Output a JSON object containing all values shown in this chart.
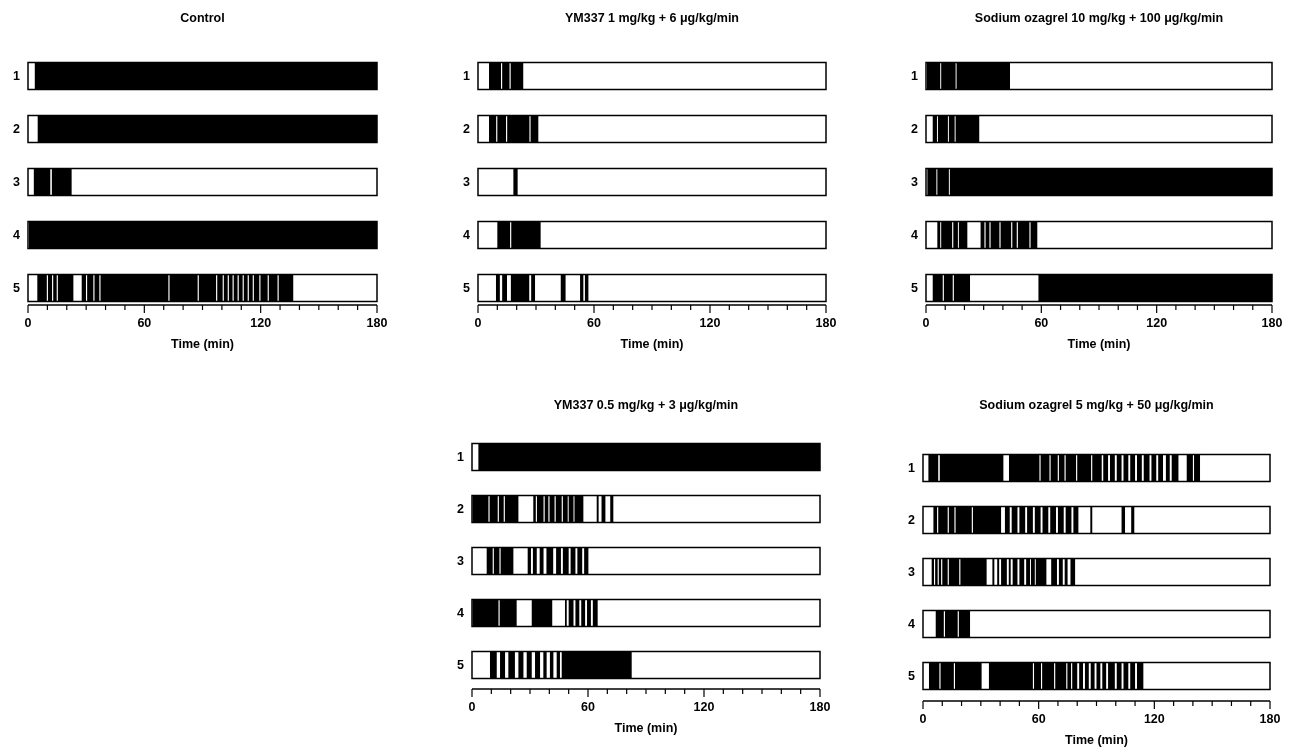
{
  "chart_data": [
    {
      "type": "bar",
      "orientation": "horizontal",
      "title": "Control",
      "xlabel": "Time (min)",
      "categories": [
        "1",
        "2",
        "3",
        "4",
        "5"
      ],
      "xlim": [
        0,
        180
      ],
      "xticks": [
        0,
        {
          "value": 10,
          "label": null
        },
        {
          "value": 20,
          "label": null
        },
        {
          "value": 30,
          "label": null
        },
        {
          "value": 40,
          "label": null
        },
        {
          "value": 50,
          "label": null
        },
        60,
        {
          "value": 70,
          "label": null
        },
        {
          "value": 80,
          "label": null
        },
        {
          "value": 90,
          "label": null
        },
        {
          "value": 100,
          "label": null
        },
        {
          "value": 110,
          "label": null
        },
        120,
        {
          "value": 130,
          "label": null
        },
        {
          "value": 140,
          "label": null
        },
        {
          "value": 150,
          "label": null
        },
        {
          "value": 160,
          "label": null
        },
        {
          "value": 170,
          "label": null
        },
        180
      ],
      "series": [
        {
          "color": "#000000",
          "base": [
            3.5,
            5,
            3,
            0.5,
            4.8
          ],
          "values": [
            176.5,
            175,
            8.5,
            179.5,
            4.9
          ]
        },
        {
          "color": "#000000",
          "base": [
            null,
            null,
            12.3,
            null,
            10.3
          ],
          "values": [
            null,
            null,
            10.2,
            null,
            2.1
          ]
        },
        {
          "color": "#000000",
          "base": [
            null,
            null,
            null,
            null,
            13
          ],
          "values": [
            null,
            null,
            null,
            null,
            1.8
          ]
        },
        {
          "color": "#000000",
          "base": [
            null,
            null,
            null,
            null,
            15.4
          ],
          "values": [
            null,
            null,
            null,
            null,
            8
          ]
        },
        {
          "color": "#000000",
          "base": [
            null,
            null,
            null,
            null,
            27.7
          ],
          "values": [
            null,
            null,
            null,
            null,
            2.2
          ]
        },
        {
          "color": "#000000",
          "base": [
            null,
            null,
            null,
            null,
            30.5
          ],
          "values": [
            null,
            null,
            null,
            null,
            3.2
          ]
        },
        {
          "color": "#000000",
          "base": [
            null,
            null,
            null,
            null,
            34.3
          ],
          "values": [
            null,
            null,
            null,
            null,
            2.5
          ]
        },
        {
          "color": "#000000",
          "base": [
            null,
            null,
            null,
            null,
            37.4
          ],
          "values": [
            null,
            null,
            null,
            null,
            35
          ]
        },
        {
          "color": "#000000",
          "base": [
            null,
            null,
            null,
            null,
            73
          ],
          "values": [
            null,
            null,
            null,
            null,
            14.5
          ]
        },
        {
          "color": "#000000",
          "base": [
            null,
            null,
            null,
            null,
            88.1
          ],
          "values": [
            null,
            null,
            null,
            null,
            8.9
          ]
        },
        {
          "color": "#000000",
          "base": [
            null,
            null,
            null,
            null,
            97.6
          ],
          "values": [
            null,
            null,
            null,
            null,
            2.8
          ]
        },
        {
          "color": "#000000",
          "base": [
            null,
            null,
            null,
            null,
            101
          ],
          "values": [
            null,
            null,
            null,
            null,
            2
          ]
        },
        {
          "color": "#000000",
          "base": [
            null,
            null,
            null,
            null,
            103.6
          ],
          "values": [
            null,
            null,
            null,
            null,
            1.9
          ]
        },
        {
          "color": "#000000",
          "base": [
            null,
            null,
            null,
            null,
            106.1
          ],
          "values": [
            null,
            null,
            null,
            null,
            2
          ]
        },
        {
          "color": "#000000",
          "base": [
            null,
            null,
            null,
            null,
            108.7
          ],
          "values": [
            null,
            null,
            null,
            null,
            2
          ]
        },
        {
          "color": "#000000",
          "base": [
            null,
            null,
            null,
            null,
            111.3
          ],
          "values": [
            null,
            null,
            null,
            null,
            2
          ]
        },
        {
          "color": "#000000",
          "base": [
            null,
            null,
            null,
            null,
            113.9
          ],
          "values": [
            null,
            null,
            null,
            null,
            2
          ]
        },
        {
          "color": "#000000",
          "base": [
            null,
            null,
            null,
            null,
            116.5
          ],
          "values": [
            null,
            null,
            null,
            null,
            2.8
          ]
        },
        {
          "color": "#000000",
          "base": [
            null,
            null,
            null,
            null,
            119.9
          ],
          "values": [
            null,
            null,
            null,
            null,
            3.7
          ]
        },
        {
          "color": "#000000",
          "base": [
            null,
            null,
            null,
            null,
            124.2
          ],
          "values": [
            null,
            null,
            null,
            null,
            4.5
          ]
        },
        {
          "color": "#000000",
          "base": [
            null,
            null,
            null,
            null,
            129.3
          ],
          "values": [
            null,
            null,
            null,
            null,
            7.5
          ]
        }
      ]
    },
    {
      "type": "bar",
      "orientation": "horizontal",
      "title": "YM337 1 mg/kg + 6 μg/kg/min",
      "xlabel": "Time (min)",
      "categories": [
        "1",
        "2",
        "3",
        "4",
        "5"
      ],
      "xlim": [
        0,
        180
      ],
      "xticks": [
        0,
        {
          "value": 10,
          "label": null
        },
        {
          "value": 20,
          "label": null
        },
        {
          "value": 30,
          "label": null
        },
        {
          "value": 40,
          "label": null
        },
        {
          "value": 50,
          "label": null
        },
        60,
        {
          "value": 70,
          "label": null
        },
        {
          "value": 80,
          "label": null
        },
        {
          "value": 90,
          "label": null
        },
        {
          "value": 100,
          "label": null
        },
        {
          "value": 110,
          "label": null
        },
        120,
        {
          "value": 130,
          "label": null
        },
        {
          "value": 140,
          "label": null
        },
        {
          "value": 150,
          "label": null
        },
        {
          "value": 160,
          "label": null
        },
        {
          "value": 170,
          "label": null
        },
        180
      ],
      "series": [
        {
          "color": "#000000",
          "base": [
            5.7,
            5.7,
            18.3,
            10,
            9.3
          ],
          "values": [
            6.2,
            3.7,
            2.2,
            6.6,
            2
          ]
        },
        {
          "color": "#000000",
          "base": [
            12.5,
            10,
            null,
            17.2,
            12.5
          ],
          "values": [
            3.8,
            4.5,
            null,
            15.2,
            2.5
          ]
        },
        {
          "color": "#000000",
          "base": [
            16.9,
            15.1,
            null,
            null,
            17
          ],
          "values": [
            6.5,
            11.5,
            null,
            null,
            9.5
          ]
        },
        {
          "color": "#000000",
          "base": [
            null,
            27.2,
            null,
            null,
            27.5
          ],
          "values": [
            null,
            4,
            null,
            null,
            2
          ]
        },
        {
          "color": "#000000",
          "base": [
            null,
            null,
            null,
            null,
            42.8
          ],
          "values": [
            null,
            null,
            null,
            null,
            2.5
          ]
        },
        {
          "color": "#000000",
          "base": [
            null,
            null,
            null,
            null,
            52.8
          ],
          "values": [
            null,
            null,
            null,
            null,
            1.7
          ]
        },
        {
          "color": "#000000",
          "base": [
            null,
            null,
            null,
            null,
            55.3
          ],
          "values": [
            null,
            null,
            null,
            null,
            1.8
          ]
        }
      ]
    },
    {
      "type": "bar",
      "orientation": "horizontal",
      "title": "Sodium ozagrel 10 mg/kg + 100 μg/kg/min",
      "xlabel": "Time (min)",
      "categories": [
        "1",
        "2",
        "3",
        "4",
        "5"
      ],
      "xlim": [
        0,
        180
      ],
      "xticks": [
        0,
        {
          "value": 10,
          "label": null
        },
        {
          "value": 20,
          "label": null
        },
        {
          "value": 30,
          "label": null
        },
        {
          "value": 40,
          "label": null
        },
        {
          "value": 50,
          "label": null
        },
        60,
        {
          "value": 70,
          "label": null
        },
        {
          "value": 80,
          "label": null
        },
        {
          "value": 90,
          "label": null
        },
        {
          "value": 100,
          "label": null
        },
        {
          "value": 110,
          "label": null
        },
        120,
        {
          "value": 130,
          "label": null
        },
        {
          "value": 140,
          "label": null
        },
        {
          "value": 150,
          "label": null
        },
        {
          "value": 160,
          "label": null
        },
        {
          "value": 170,
          "label": null
        },
        180
      ],
      "series": [
        {
          "color": "#000000",
          "base": [
            0.5,
            3.5,
            0.7,
            5.9,
            3.5
          ],
          "values": [
            6.9,
            2.2,
            4.7,
            1.5,
            5.2
          ]
        },
        {
          "color": "#000000",
          "base": [
            7.9,
            6.2,
            5.9,
            7.9,
            9.3
          ],
          "values": [
            7.5,
            5.2,
            6,
            5.7,
            4.6
          ]
        },
        {
          "color": "#000000",
          "base": [
            15.9,
            11.9,
            12.4,
            14.2,
            14.5
          ],
          "values": [
            27.8,
            3,
            167.6,
            2.4,
            8.4
          ]
        },
        {
          "color": "#000000",
          "base": [
            null,
            15.4,
            null,
            17.1,
            58.5
          ],
          "values": [
            null,
            12.3,
            null,
            4.4,
            121.5
          ]
        },
        {
          "color": "#000000",
          "base": [
            null,
            null,
            null,
            28.4,
            null
          ],
          "values": [
            null,
            null,
            null,
            2,
            null
          ]
        },
        {
          "color": "#000000",
          "base": [
            null,
            null,
            null,
            31,
            null
          ],
          "values": [
            null,
            null,
            null,
            2,
            null
          ]
        },
        {
          "color": "#000000",
          "base": [
            null,
            null,
            null,
            33.6,
            null
          ],
          "values": [
            null,
            null,
            null,
            4.6,
            null
          ]
        },
        {
          "color": "#000000",
          "base": [
            null,
            null,
            null,
            38.8,
            null
          ],
          "values": [
            null,
            null,
            null,
            5.5,
            null
          ]
        },
        {
          "color": "#000000",
          "base": [
            null,
            null,
            null,
            44.9,
            null
          ],
          "values": [
            null,
            null,
            null,
            2.3,
            null
          ]
        },
        {
          "color": "#000000",
          "base": [
            null,
            null,
            null,
            47.8,
            null
          ],
          "values": [
            null,
            null,
            null,
            6,
            null
          ]
        },
        {
          "color": "#000000",
          "base": [
            null,
            null,
            null,
            54.4,
            null
          ],
          "values": [
            null,
            null,
            null,
            3.5,
            null
          ]
        }
      ]
    },
    {
      "type": "bar",
      "orientation": "horizontal",
      "title": "YM337 0.5 mg/kg + 3 μg/kg/min",
      "xlabel": "Time (min)",
      "categories": [
        "1",
        "2",
        "3",
        "4",
        "5"
      ],
      "xlim": [
        0,
        180
      ],
      "xticks": [
        0,
        {
          "value": 10,
          "label": null
        },
        {
          "value": 20,
          "label": null
        },
        {
          "value": 30,
          "label": null
        },
        {
          "value": 40,
          "label": null
        },
        {
          "value": 50,
          "label": null
        },
        60,
        {
          "value": 70,
          "label": null
        },
        {
          "value": 80,
          "label": null
        },
        {
          "value": 90,
          "label": null
        },
        {
          "value": 100,
          "label": null
        },
        {
          "value": 110,
          "label": null
        },
        120,
        {
          "value": 130,
          "label": null
        },
        {
          "value": 140,
          "label": null
        },
        {
          "value": 150,
          "label": null
        },
        {
          "value": 160,
          "label": null
        },
        {
          "value": 170,
          "label": null
        },
        180
      ],
      "series": [
        {
          "color": "#000000",
          "base": [
            3.3,
            0.3,
            7.6,
            0.3,
            9.3
          ],
          "values": [
            176.7,
            8.2,
            3.1,
            13.4,
            3.5
          ]
        },
        {
          "color": "#000000",
          "base": [
            null,
            9.1,
            11.3,
            14.3,
            14.5
          ],
          "values": [
            null,
            4.2,
            2.9,
            8.8,
            2.6
          ]
        },
        {
          "color": "#000000",
          "base": [
            null,
            13.9,
            14.8,
            30.9,
            18.8
          ],
          "values": [
            null,
            2.5,
            6.6,
            10.6,
            3.4
          ]
        },
        {
          "color": "#000000",
          "base": [
            null,
            17,
            28.8,
            48.1,
            24
          ],
          "values": [
            null,
            7,
            1.7,
            0.9,
            2.6
          ]
        },
        {
          "color": "#000000",
          "base": [
            null,
            31.7,
            31.5,
            50,
            28.3
          ],
          "values": [
            null,
            1.3,
            2,
            2.5,
            2.6
          ]
        },
        {
          "color": "#000000",
          "base": [
            null,
            33.6,
            35,
            53.5,
            32.6
          ],
          "values": [
            null,
            3.4,
            2,
            2,
            2.6
          ]
        },
        {
          "color": "#000000",
          "base": [
            null,
            37.6,
            38.5,
            56.5,
            36.9
          ],
          "values": [
            null,
            1.9,
            3.5,
            2,
            1.7
          ]
        },
        {
          "color": "#000000",
          "base": [
            null,
            40.1,
            43.5,
            59.5,
            40.3
          ],
          "values": [
            null,
            2.6,
            2.5,
            2,
            1.8
          ]
        },
        {
          "color": "#000000",
          "base": [
            null,
            43.3,
            47,
            62.5,
            43.8
          ],
          "values": [
            null,
            3.1,
            3,
            2.5,
            1.7
          ]
        },
        {
          "color": "#000000",
          "base": [
            null,
            47,
            51,
            null,
            46.4
          ],
          "values": [
            null,
            2.5,
            2.5,
            null,
            36.2
          ]
        },
        {
          "color": "#000000",
          "base": [
            null,
            50,
            54.5,
            null,
            null
          ],
          "values": [
            null,
            2.5,
            2.5,
            null,
            null
          ]
        },
        {
          "color": "#000000",
          "base": [
            null,
            53,
            58,
            null,
            null
          ],
          "values": [
            null,
            4.6,
            2.2,
            null,
            null
          ]
        },
        {
          "color": "#000000",
          "base": [
            null,
            64.5,
            null,
            null,
            null
          ],
          "values": [
            null,
            1,
            null,
            null,
            null
          ]
        },
        {
          "color": "#000000",
          "base": [
            null,
            67,
            null,
            null,
            null
          ],
          "values": [
            null,
            2,
            null,
            null,
            null
          ]
        },
        {
          "color": "#000000",
          "base": [
            null,
            71.5,
            null,
            null,
            null
          ],
          "values": [
            null,
            1.6,
            null,
            null,
            null
          ]
        }
      ]
    },
    {
      "type": "bar",
      "orientation": "horizontal",
      "title": "Sodium ozagrel 5 mg/kg + 50 μg/kg/min",
      "xlabel": "Time (min)",
      "categories": [
        "1",
        "2",
        "3",
        "4",
        "5"
      ],
      "xlim": [
        0,
        180
      ],
      "xticks": [
        0,
        {
          "value": 10,
          "label": null
        },
        {
          "value": 20,
          "label": null
        },
        {
          "value": 30,
          "label": null
        },
        {
          "value": 40,
          "label": null
        },
        {
          "value": 50,
          "label": null
        },
        60,
        {
          "value": 70,
          "label": null
        },
        {
          "value": 80,
          "label": null
        },
        {
          "value": 90,
          "label": null
        },
        {
          "value": 100,
          "label": null
        },
        {
          "value": 110,
          "label": null
        },
        120,
        {
          "value": 130,
          "label": null
        },
        {
          "value": 140,
          "label": null
        },
        {
          "value": 150,
          "label": null
        },
        {
          "value": 160,
          "label": null
        },
        {
          "value": 170,
          "label": null
        },
        180
      ],
      "series": [
        {
          "color": "#000000",
          "base": [
            2.8,
            5.4,
            4.5,
            6.6,
            3.1
          ],
          "values": [
            5.1,
            1.9,
            1.2,
            4.2,
            5.4
          ]
        },
        {
          "color": "#000000",
          "base": [
            8.7,
            7.9,
            6.3,
            11.4,
            9.1
          ],
          "values": [
            33,
            4.9,
            1.3,
            6.6,
            6.9
          ]
        },
        {
          "color": "#000000",
          "base": [
            44.6,
            13.4,
            8.2,
            18.6,
            16.6
          ],
          "values": [
            15.8,
            2.9,
            1.2,
            5.8,
            13.8
          ]
        },
        {
          "color": "#000000",
          "base": [
            61,
            16.9,
            10,
            null,
            34.2
          ],
          "values": [
            4.6,
            8.4,
            2.8,
            null,
            22.8
          ]
        },
        {
          "color": "#000000",
          "base": [
            66.2,
            25.9,
            13.4,
            null,
            57.6
          ],
          "values": [
            3.7,
            14.6,
            5.4,
            null,
            3.6
          ]
        },
        {
          "color": "#000000",
          "base": [
            70.5,
            42.5,
            19.4,
            null,
            61.8
          ],
          "values": [
            2.9,
            2.5,
            13.6,
            null,
            6.2
          ]
        },
        {
          "color": "#000000",
          "base": [
            74,
            46,
            36,
            null,
            68.6
          ],
          "values": [
            5.4,
            3,
            1,
            null,
            5.7
          ]
        },
        {
          "color": "#000000",
          "base": [
            80,
            50,
            38.5,
            null,
            74.9
          ],
          "values": [
            7.2,
            3,
            1,
            null,
            1.9
          ]
        },
        {
          "color": "#000000",
          "base": [
            87.8,
            54,
            40.5,
            null,
            77.4
          ],
          "values": [
            4.9,
            3,
            3,
            null,
            2.6
          ]
        },
        {
          "color": "#000000",
          "base": [
            93.5,
            58,
            44.5,
            null,
            81
          ],
          "values": [
            2.5,
            3,
            1,
            null,
            2
          ]
        },
        {
          "color": "#000000",
          "base": [
            97,
            62,
            46.5,
            null,
            84
          ],
          "values": [
            2.5,
            3,
            2.5,
            null,
            2
          ]
        },
        {
          "color": "#000000",
          "base": [
            100.5,
            66,
            50,
            null,
            87
          ],
          "values": [
            2.5,
            3,
            2.5,
            null,
            2
          ]
        },
        {
          "color": "#000000",
          "base": [
            104,
            70,
            53.5,
            null,
            90
          ],
          "values": [
            2.5,
            3,
            2,
            null,
            2
          ]
        },
        {
          "color": "#000000",
          "base": [
            107.5,
            74,
            56,
            null,
            93
          ],
          "values": [
            2.5,
            3,
            2,
            null,
            2
          ]
        },
        {
          "color": "#000000",
          "base": [
            111,
            78,
            58.5,
            null,
            96
          ],
          "values": [
            2.5,
            2.6,
            5.5,
            null,
            3.5
          ]
        },
        {
          "color": "#000000",
          "base": [
            114.5,
            86.8,
            66.5,
            null,
            100.5
          ],
          "values": [
            3,
            1,
            3,
            null,
            2.5
          ]
        },
        {
          "color": "#000000",
          "base": [
            118.5,
            103,
            70.5,
            null,
            104
          ],
          "values": [
            2.5,
            1.8,
            2,
            null,
            2.5
          ]
        },
        {
          "color": "#000000",
          "base": [
            122,
            108,
            73.5,
            null,
            107.5
          ],
          "values": [
            2.5,
            1.6,
            1.5,
            null,
            2.5
          ]
        },
        {
          "color": "#000000",
          "base": [
            126,
            null,
            76.5,
            null,
            111
          ],
          "values": [
            2,
            null,
            2.4,
            null,
            3.3
          ]
        },
        {
          "color": "#000000",
          "base": [
            129,
            null,
            null,
            null,
            null
          ],
          "values": [
            3.5,
            null,
            null,
            null,
            null
          ]
        },
        {
          "color": "#000000",
          "base": [
            136.8,
            null,
            null,
            null,
            null
          ],
          "values": [
            3.2,
            null,
            null,
            null,
            null
          ]
        },
        {
          "color": "#000000",
          "base": [
            140.6,
            null,
            null,
            null,
            null
          ],
          "values": [
            3.1,
            null,
            null,
            null,
            null
          ]
        }
      ]
    }
  ]
}
